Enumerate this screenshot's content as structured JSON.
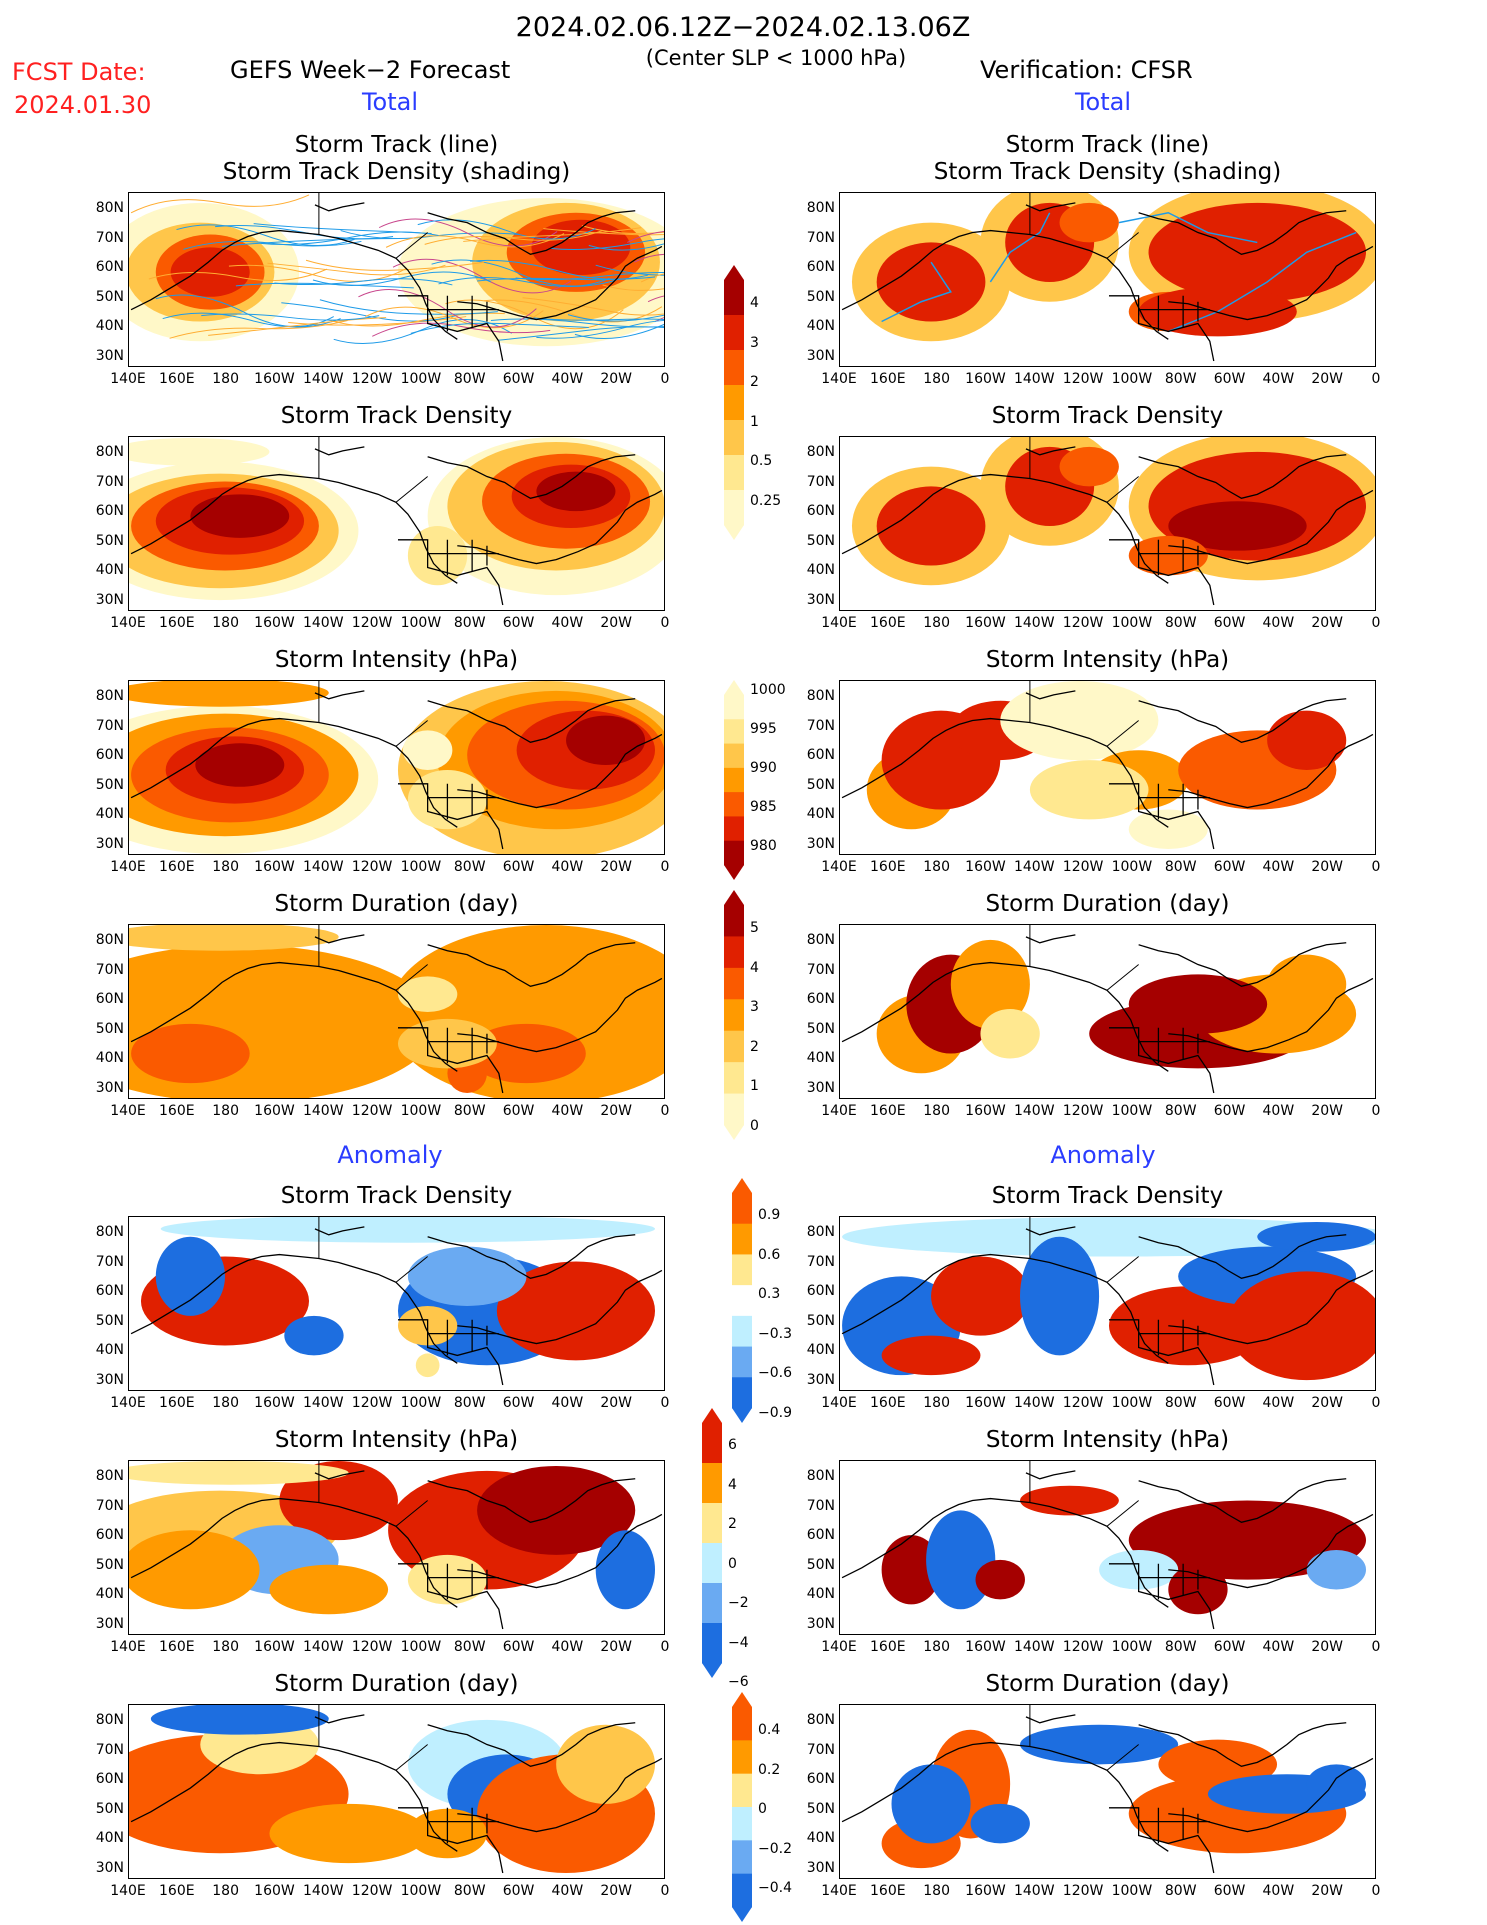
{
  "header": {
    "date_range": "2024.02.06.12Z−2024.02.13.06Z",
    "criterion": "(Center SLP < 1000 hPa)",
    "fcst_label": "FCST Date:",
    "fcst_date": "2024.01.30",
    "left_title": "GEFS Week−2 Forecast",
    "right_title": "Verification: CFSR",
    "total_left": "Total",
    "total_right": "Total",
    "anomaly_left": "Anomaly",
    "anomaly_right": "Anomaly"
  },
  "panel_titles": {
    "track_line": "Storm Track (line)",
    "track_density_shading": "Storm Track Density (shading)",
    "track_density": "Storm Track Density",
    "intensity": "Storm Intensity (hPa)",
    "duration": "Storm Duration (day)"
  },
  "axes": {
    "lat_labels": [
      "80N",
      "70N",
      "60N",
      "50N",
      "40N",
      "30N"
    ],
    "lon_labels": [
      "140E",
      "160E",
      "180",
      "160W",
      "140W",
      "120W",
      "100W",
      "80W",
      "60W",
      "40W",
      "20W",
      "0"
    ]
  },
  "colorbars": {
    "density_total": [
      "4",
      "3",
      "2",
      "1",
      "0.5",
      "0.25"
    ],
    "intensity_total": [
      "1000",
      "995",
      "990",
      "985",
      "980"
    ],
    "duration_total": [
      "5",
      "4",
      "3",
      "2",
      "1",
      "0"
    ],
    "density_anom": [
      "0.9",
      "0.6",
      "0.3",
      "−0.3",
      "−0.6",
      "−0.9"
    ],
    "intensity_anom": [
      "6",
      "4",
      "2",
      "0",
      "−2",
      "−4",
      "−6"
    ],
    "duration_anom": [
      "0.4",
      "0.2",
      "0",
      "−0.2",
      "−0.4"
    ]
  },
  "colors": {
    "dark_red": "#a50000",
    "red": "#e02000",
    "orange_red": "#fa5a00",
    "orange": "#ff9a00",
    "light_orange": "#ffc64a",
    "yellow": "#ffe890",
    "pale_yellow": "#fff8c8",
    "light_blue": "#bfefff",
    "mid_blue": "#6aaaf2",
    "blue": "#1d6ee0",
    "track_blue": "#1e9be8",
    "track_orange": "#ffad32",
    "track_pink": "#c8468c"
  }
}
